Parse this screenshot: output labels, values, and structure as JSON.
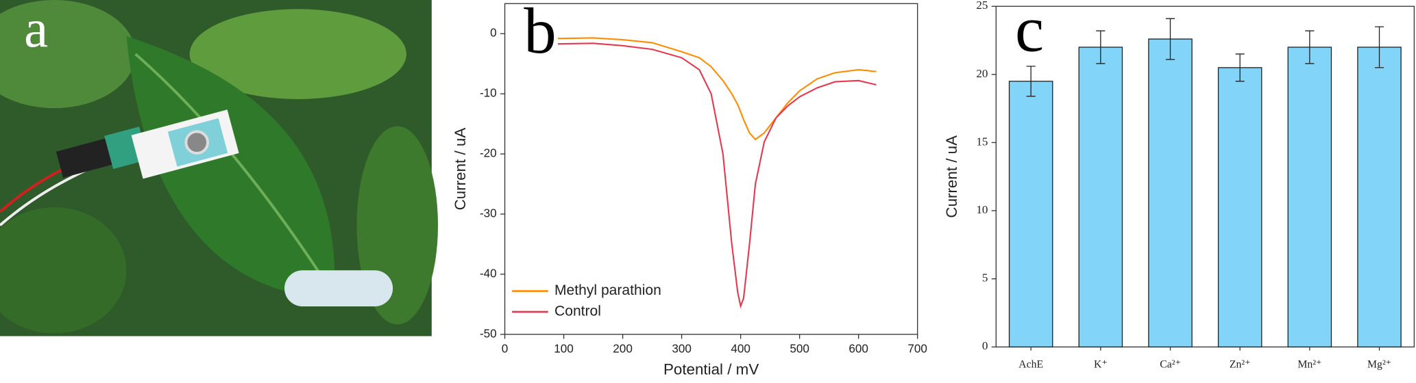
{
  "photo": {
    "panel_label": "a"
  },
  "chart_data": [
    {
      "type": "line",
      "panel_label": "b",
      "xlabel": "Potential / mV",
      "ylabel": "Current / uA",
      "x": [
        90,
        150,
        200,
        250,
        300,
        330,
        350,
        370,
        385,
        395,
        400,
        405,
        415,
        425,
        440,
        460,
        480,
        500,
        530,
        560,
        600,
        630
      ],
      "series": [
        {
          "name": "Methyl parathion",
          "color": "#ff8c00",
          "values": [
            -0.8,
            -0.7,
            -1,
            -1.5,
            -3,
            -4,
            -5.5,
            -7.8,
            -10,
            -11.8,
            -13,
            -14.3,
            -16.5,
            -17.6,
            -16.5,
            -14,
            -11.5,
            -9.5,
            -7.5,
            -6.5,
            -6,
            -6.3
          ]
        },
        {
          "name": "Control",
          "color": "#e8384f",
          "values": [
            -1.7,
            -1.6,
            -2,
            -2.6,
            -4,
            -6,
            -10,
            -20,
            -35,
            -43,
            -45.3,
            -44,
            -35,
            -25,
            -18,
            -14,
            -12,
            -10.5,
            -9,
            -8,
            -7.8,
            -8.5
          ]
        }
      ],
      "xlim": [
        0,
        700
      ],
      "xticks": [
        0,
        100,
        200,
        300,
        400,
        500,
        600,
        700
      ],
      "ylim": [
        -50,
        5
      ],
      "yticks": [
        0,
        -10,
        -20,
        -30,
        -40,
        -50
      ],
      "legend": "lower left"
    },
    {
      "type": "bar",
      "panel_label": "c",
      "ylabel": "Current / uA",
      "categories": [
        "AchE",
        "K⁺",
        "Ca²⁺",
        "Zn²⁺",
        "Mn²⁺",
        "Mg²⁺"
      ],
      "values": [
        19.5,
        22,
        22.6,
        20.5,
        22,
        22
      ],
      "errors": [
        1.1,
        1.2,
        1.5,
        1.0,
        1.2,
        1.5
      ],
      "color": "#82d5f8",
      "ylim": [
        0,
        25
      ],
      "yticks": [
        0,
        5,
        10,
        15,
        20,
        25
      ]
    }
  ]
}
